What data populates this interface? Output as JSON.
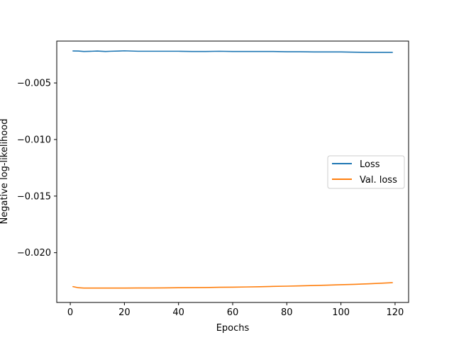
{
  "chart_data": {
    "type": "line",
    "title": "",
    "xlabel": "Epochs",
    "ylabel": "Negative log-likelihood",
    "xlim": [
      -5,
      125
    ],
    "ylim": [
      -0.0244,
      -0.0013
    ],
    "xticks": [
      0,
      20,
      40,
      60,
      80,
      100,
      120
    ],
    "xtick_labels": [
      "0",
      "20",
      "40",
      "60",
      "80",
      "100",
      "120"
    ],
    "yticks": [
      -0.005,
      -0.01,
      -0.015,
      -0.02
    ],
    "ytick_labels": [
      "−0.005",
      "−0.010",
      "−0.015",
      "−0.020"
    ],
    "grid": false,
    "legend_position": "center-right",
    "series": [
      {
        "name": "Loss",
        "color": "#1f77b4",
        "x": [
          1,
          3,
          5,
          8,
          10,
          13,
          15,
          18,
          20,
          25,
          30,
          35,
          40,
          45,
          50,
          55,
          60,
          65,
          70,
          75,
          80,
          85,
          90,
          95,
          100,
          105,
          110,
          115,
          119
        ],
        "y": [
          -0.00217,
          -0.00218,
          -0.00222,
          -0.0022,
          -0.00218,
          -0.00222,
          -0.0022,
          -0.00218,
          -0.00216,
          -0.0022,
          -0.0022,
          -0.0022,
          -0.0022,
          -0.00222,
          -0.00222,
          -0.0022,
          -0.00222,
          -0.00222,
          -0.00222,
          -0.00222,
          -0.00224,
          -0.00224,
          -0.00226,
          -0.00226,
          -0.00226,
          -0.00228,
          -0.0023,
          -0.0023,
          -0.0023
        ]
      },
      {
        "name": "Val. loss",
        "color": "#ff7f0e",
        "x": [
          1,
          3,
          5,
          8,
          10,
          15,
          20,
          25,
          30,
          35,
          40,
          45,
          50,
          55,
          60,
          65,
          70,
          75,
          80,
          85,
          90,
          95,
          100,
          105,
          110,
          115,
          119
        ],
        "y": [
          -0.023,
          -0.0231,
          -0.02313,
          -0.02313,
          -0.02313,
          -0.02313,
          -0.02313,
          -0.02312,
          -0.02312,
          -0.02311,
          -0.0231,
          -0.02309,
          -0.02308,
          -0.02306,
          -0.02305,
          -0.02303,
          -0.02301,
          -0.02298,
          -0.02296,
          -0.02293,
          -0.0229,
          -0.02287,
          -0.02283,
          -0.0228,
          -0.02275,
          -0.0227,
          -0.02265
        ]
      }
    ]
  }
}
